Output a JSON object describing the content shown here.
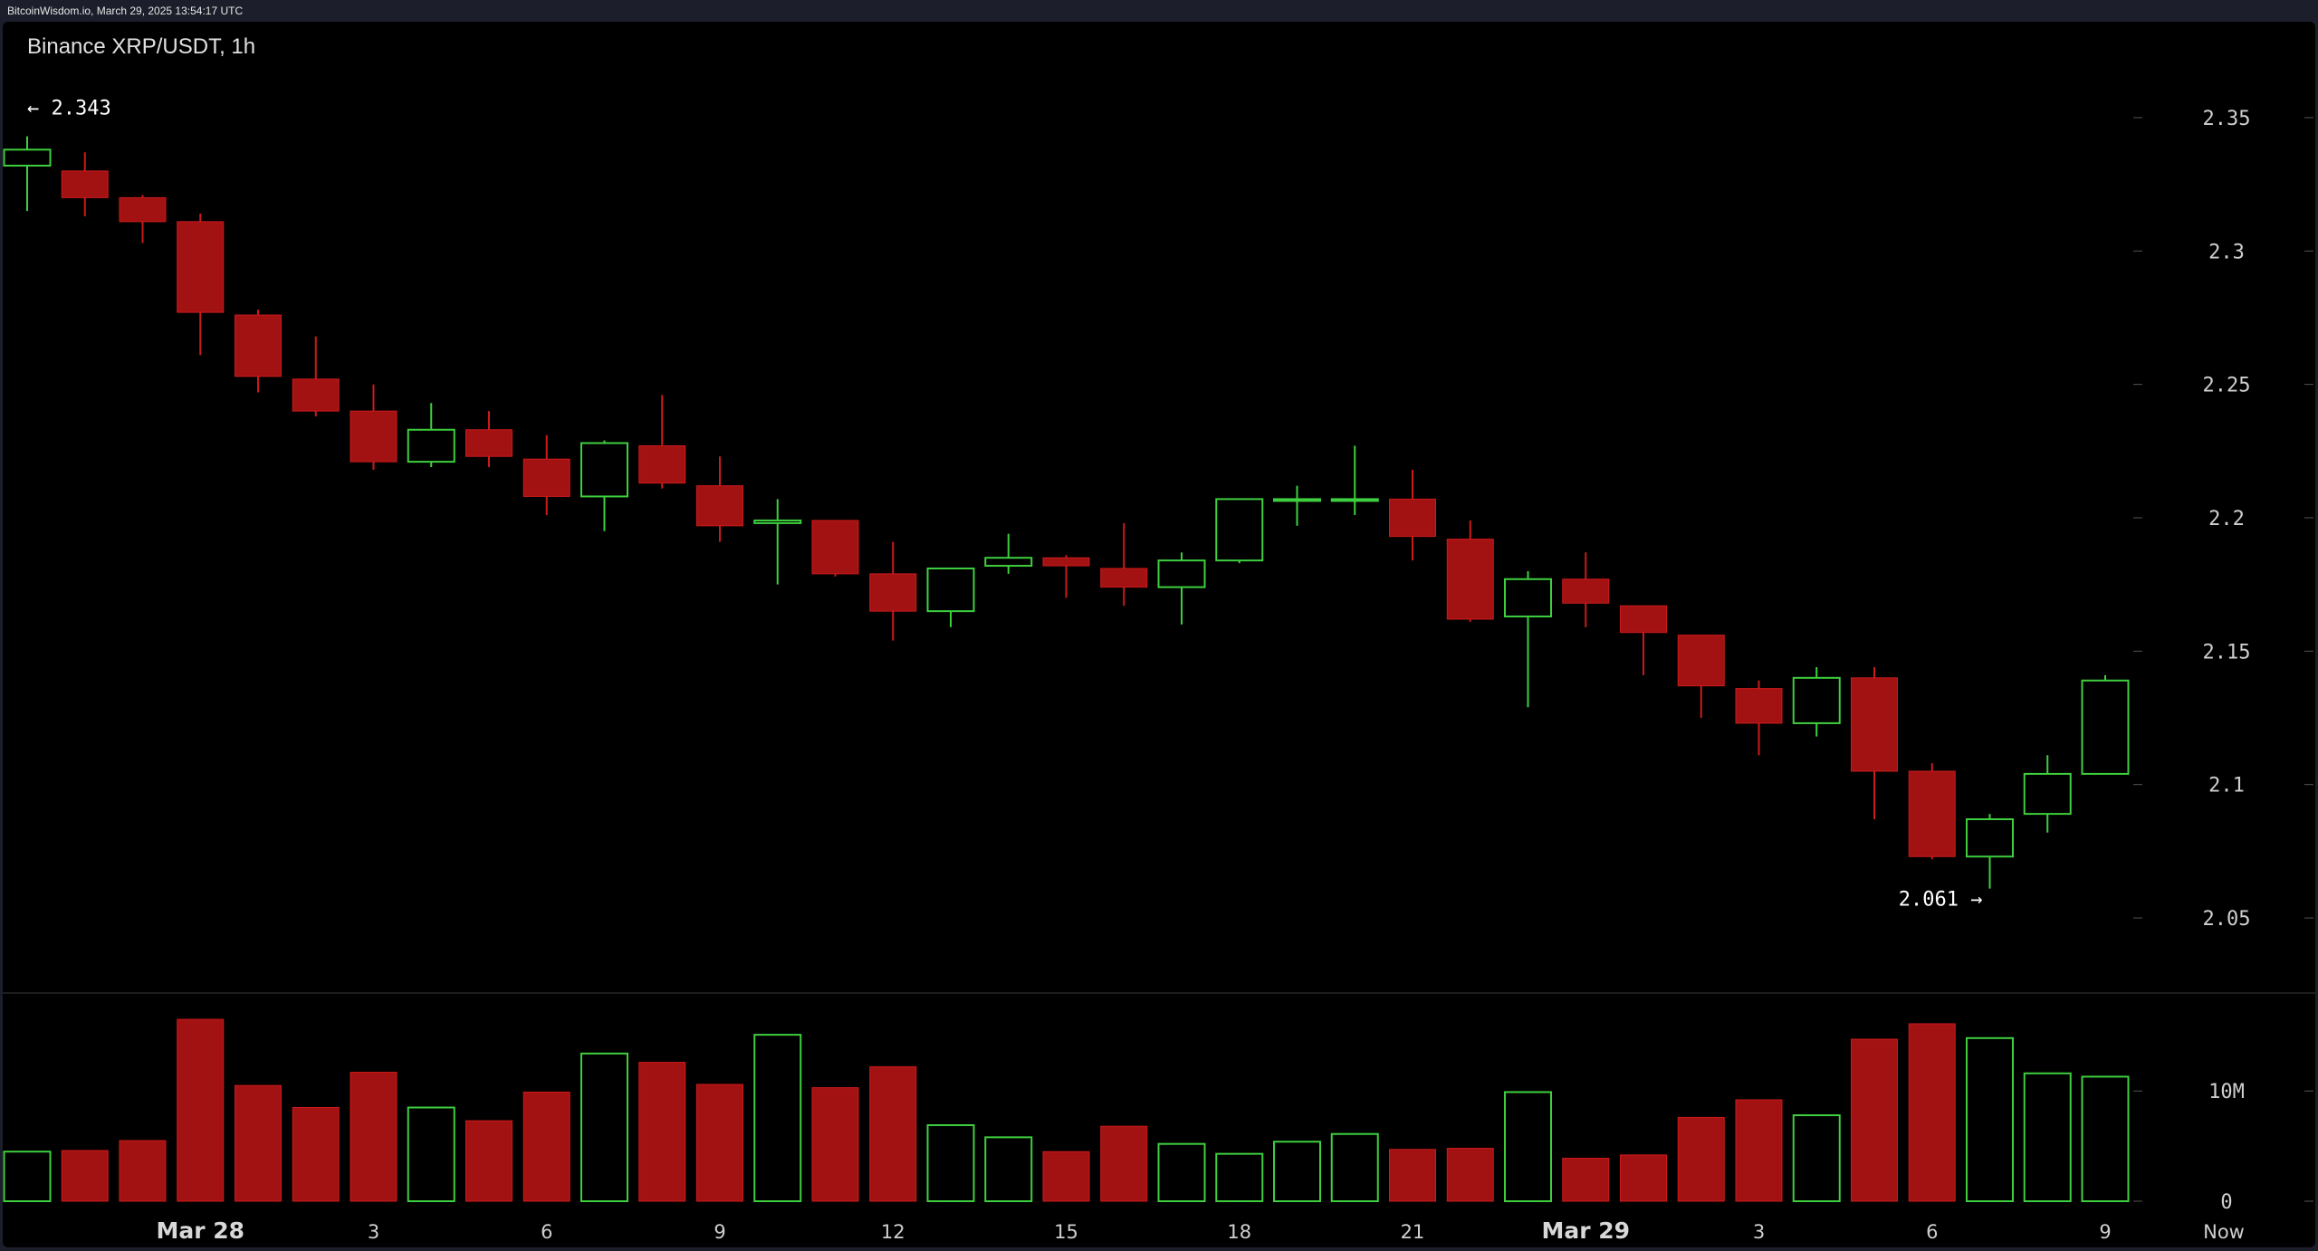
{
  "header": {
    "source": "BitcoinWisdom.io, March 29, 2025 13:54:17 UTC"
  },
  "colors": {
    "up": "#3ecf3e",
    "down": "#a31212",
    "downStroke": "#cc1a1a",
    "background": "#000000",
    "frame": "#1c1f2b"
  },
  "chart_data": {
    "type": "candlestick",
    "title": "Binance XRP/USDT, 1h",
    "price_axis": {
      "range": [
        2.03,
        2.37
      ],
      "ticks": [
        "2.35",
        "2.3",
        "2.25",
        "2.2",
        "2.15",
        "2.1",
        "2.05"
      ],
      "position": "right"
    },
    "volume_axis": {
      "range": [
        0,
        17000000
      ],
      "ticks": [
        "10M",
        "0"
      ],
      "tick_values": [
        10000000,
        0
      ]
    },
    "x_labels": [
      {
        "label": "Mar 28",
        "index": 3,
        "bold": true
      },
      {
        "label": "3",
        "index": 6,
        "bold": false
      },
      {
        "label": "6",
        "index": 9,
        "bold": false
      },
      {
        "label": "9",
        "index": 12,
        "bold": false
      },
      {
        "label": "12",
        "index": 15,
        "bold": false
      },
      {
        "label": "15",
        "index": 18,
        "bold": false
      },
      {
        "label": "18",
        "index": 21,
        "bold": false
      },
      {
        "label": "21",
        "index": 24,
        "bold": false
      },
      {
        "label": "Mar 29",
        "index": 27,
        "bold": true
      },
      {
        "label": "3",
        "index": 30,
        "bold": false
      },
      {
        "label": "6",
        "index": 33,
        "bold": false
      },
      {
        "label": "9",
        "index": 36,
        "bold": false
      },
      {
        "label": "Now",
        "index": 38,
        "bold": false
      }
    ],
    "annotations": [
      {
        "text": "← 2.343",
        "index": 0,
        "price": 2.343,
        "side": "right"
      },
      {
        "text": "2.061 →",
        "index": 34,
        "price": 2.061,
        "side": "left"
      }
    ],
    "candles": [
      {
        "o": 2.332,
        "h": 2.343,
        "l": 2.315,
        "c": 2.338,
        "v": 4500000
      },
      {
        "o": 2.33,
        "h": 2.337,
        "l": 2.313,
        "c": 2.32,
        "v": 4600000
      },
      {
        "o": 2.32,
        "h": 2.321,
        "l": 2.303,
        "c": 2.311,
        "v": 5500000
      },
      {
        "o": 2.311,
        "h": 2.314,
        "l": 2.261,
        "c": 2.277,
        "v": 16500000
      },
      {
        "o": 2.276,
        "h": 2.278,
        "l": 2.247,
        "c": 2.253,
        "v": 10500000
      },
      {
        "o": 2.252,
        "h": 2.268,
        "l": 2.238,
        "c": 2.24,
        "v": 8500000
      },
      {
        "o": 2.24,
        "h": 2.25,
        "l": 2.218,
        "c": 2.221,
        "v": 11700000
      },
      {
        "o": 2.221,
        "h": 2.243,
        "l": 2.219,
        "c": 2.233,
        "v": 8500000
      },
      {
        "o": 2.233,
        "h": 2.24,
        "l": 2.219,
        "c": 2.223,
        "v": 7300000
      },
      {
        "o": 2.222,
        "h": 2.231,
        "l": 2.201,
        "c": 2.208,
        "v": 9900000
      },
      {
        "o": 2.208,
        "h": 2.229,
        "l": 2.195,
        "c": 2.228,
        "v": 13400000
      },
      {
        "o": 2.227,
        "h": 2.246,
        "l": 2.211,
        "c": 2.213,
        "v": 12600000
      },
      {
        "o": 2.212,
        "h": 2.223,
        "l": 2.191,
        "c": 2.197,
        "v": 10600000
      },
      {
        "o": 2.198,
        "h": 2.207,
        "l": 2.175,
        "c": 2.199,
        "v": 15100000
      },
      {
        "o": 2.199,
        "h": 2.199,
        "l": 2.178,
        "c": 2.179,
        "v": 10300000
      },
      {
        "o": 2.179,
        "h": 2.191,
        "l": 2.154,
        "c": 2.165,
        "v": 12200000
      },
      {
        "o": 2.165,
        "h": 2.181,
        "l": 2.159,
        "c": 2.181,
        "v": 6900000
      },
      {
        "o": 2.182,
        "h": 2.194,
        "l": 2.179,
        "c": 2.185,
        "v": 5800000
      },
      {
        "o": 2.185,
        "h": 2.186,
        "l": 2.17,
        "c": 2.182,
        "v": 4500000
      },
      {
        "o": 2.181,
        "h": 2.198,
        "l": 2.167,
        "c": 2.174,
        "v": 6800000
      },
      {
        "o": 2.174,
        "h": 2.187,
        "l": 2.16,
        "c": 2.184,
        "v": 5200000
      },
      {
        "o": 2.184,
        "h": 2.207,
        "l": 2.183,
        "c": 2.207,
        "v": 4300000
      },
      {
        "o": 2.207,
        "h": 2.212,
        "l": 2.197,
        "c": 2.207,
        "v": 5400000
      },
      {
        "o": 2.207,
        "h": 2.227,
        "l": 2.201,
        "c": 2.207,
        "v": 6100000
      },
      {
        "o": 2.207,
        "h": 2.218,
        "l": 2.184,
        "c": 2.193,
        "v": 4700000
      },
      {
        "o": 2.192,
        "h": 2.199,
        "l": 2.161,
        "c": 2.162,
        "v": 4800000
      },
      {
        "o": 2.163,
        "h": 2.18,
        "l": 2.129,
        "c": 2.177,
        "v": 9900000
      },
      {
        "o": 2.177,
        "h": 2.187,
        "l": 2.159,
        "c": 2.168,
        "v": 3900000
      },
      {
        "o": 2.167,
        "h": 2.167,
        "l": 2.141,
        "c": 2.157,
        "v": 4200000
      },
      {
        "o": 2.156,
        "h": 2.156,
        "l": 2.125,
        "c": 2.137,
        "v": 7600000
      },
      {
        "o": 2.136,
        "h": 2.139,
        "l": 2.111,
        "c": 2.123,
        "v": 9200000
      },
      {
        "o": 2.123,
        "h": 2.144,
        "l": 2.118,
        "c": 2.14,
        "v": 7800000
      },
      {
        "o": 2.14,
        "h": 2.144,
        "l": 2.087,
        "c": 2.105,
        "v": 14700000
      },
      {
        "o": 2.105,
        "h": 2.108,
        "l": 2.072,
        "c": 2.073,
        "v": 16100000
      },
      {
        "o": 2.073,
        "h": 2.089,
        "l": 2.061,
        "c": 2.087,
        "v": 14800000
      },
      {
        "o": 2.089,
        "h": 2.111,
        "l": 2.082,
        "c": 2.104,
        "v": 11600000
      },
      {
        "o": 2.104,
        "h": 2.141,
        "l": 2.104,
        "c": 2.139,
        "v": 11300000
      }
    ]
  }
}
